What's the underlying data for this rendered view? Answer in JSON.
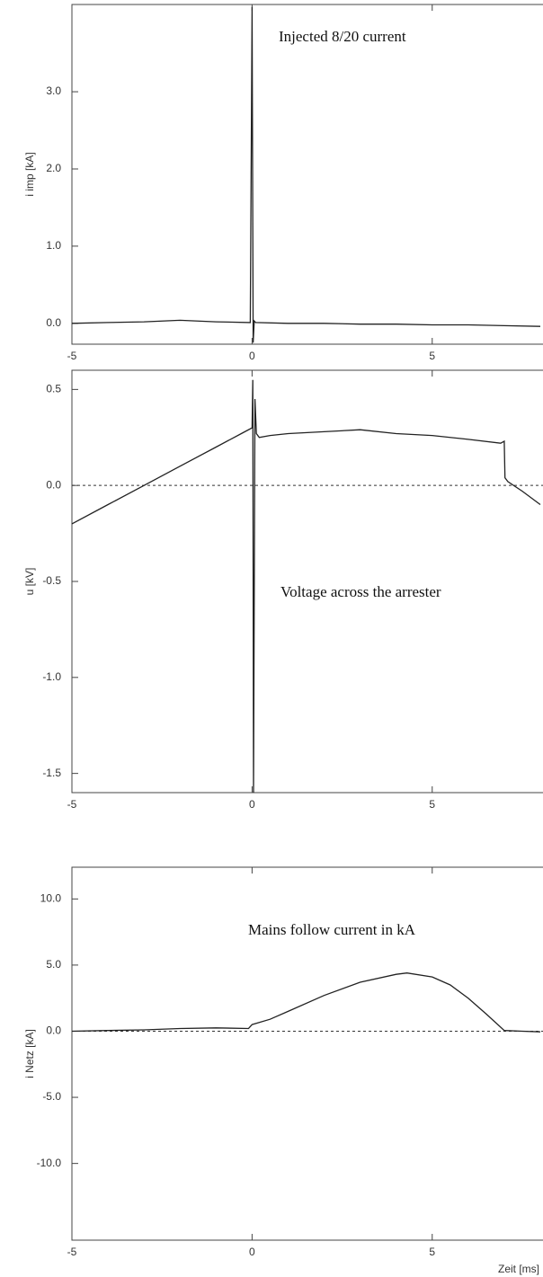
{
  "chart_data": [
    {
      "type": "line",
      "annotation": "Injected 8/20 current",
      "y_label": "i imp  [kA]",
      "x": [
        -5,
        -4,
        -3,
        -2,
        -1,
        -0.05,
        0,
        0.03,
        0.06,
        0.1,
        1,
        2,
        3,
        4,
        5,
        6,
        7,
        8
      ],
      "values": [
        0,
        0.01,
        0.02,
        0.04,
        0.02,
        0.01,
        4.1,
        -0.25,
        0.03,
        0.01,
        0,
        0,
        -0.01,
        -0.01,
        -0.02,
        -0.02,
        -0.03,
        -0.04
      ],
      "color": "#222",
      "xlim": [
        -5,
        8
      ],
      "ylim": [
        -0.27,
        4.13
      ],
      "xticks": [
        -5,
        0,
        5
      ],
      "yticks": [
        {
          "value": 0,
          "label": "0.0"
        },
        {
          "value": 1,
          "label": "1.0"
        },
        {
          "value": 2,
          "label": "2.0"
        },
        {
          "value": 3,
          "label": "3.0"
        }
      ],
      "zero_line": false
    },
    {
      "type": "line",
      "annotation": "Voltage across the arrester",
      "y_label": "u  [kV]",
      "x": [
        -5,
        -4,
        -3,
        -2,
        -1,
        -0.3,
        0,
        0.02,
        0.04,
        0.08,
        0.12,
        0.2,
        0.5,
        1,
        2,
        3,
        4,
        5,
        6,
        6.9,
        7,
        7.02,
        7.1,
        7.5,
        8
      ],
      "values": [
        -0.2,
        -0.1,
        0,
        0.1,
        0.2,
        0.27,
        0.3,
        0.55,
        -1.6,
        0.45,
        0.27,
        0.25,
        0.26,
        0.27,
        0.28,
        0.29,
        0.27,
        0.26,
        0.24,
        0.22,
        0.23,
        0.04,
        0.02,
        -0.03,
        -0.1
      ],
      "color": "#222",
      "xlim": [
        -5,
        8
      ],
      "ylim": [
        -1.6,
        0.6
      ],
      "xticks": [
        -5,
        0,
        5
      ],
      "yticks": [
        {
          "value": 0.5,
          "label": "0.5"
        },
        {
          "value": 0,
          "label": "0.0"
        },
        {
          "value": -0.5,
          "label": "-0.5"
        },
        {
          "value": -1,
          "label": "-1.0"
        },
        {
          "value": -1.5,
          "label": "-1.5"
        }
      ],
      "zero_line": true
    },
    {
      "type": "line",
      "annotation": "Mains follow current in kA",
      "y_label": "i Netz  [kA]",
      "x_label": "Zeit  [ms]",
      "x": [
        -5,
        -4,
        -3,
        -2,
        -1,
        -0.1,
        0,
        0.5,
        1,
        2,
        3,
        4,
        4.3,
        5,
        5.5,
        6,
        6.5,
        7,
        7.5,
        8
      ],
      "values": [
        0,
        0.05,
        0.1,
        0.2,
        0.25,
        0.2,
        0.5,
        0.9,
        1.5,
        2.7,
        3.7,
        4.3,
        4.4,
        4.1,
        3.5,
        2.5,
        1.3,
        0.05,
        0,
        -0.05
      ],
      "color": "#222",
      "xlim": [
        -5,
        8
      ],
      "ylim": [
        -15.8,
        12.4
      ],
      "xticks": [
        -5,
        0,
        5
      ],
      "yticks": [
        {
          "value": 10,
          "label": "10.0"
        },
        {
          "value": 5,
          "label": "5.0"
        },
        {
          "value": 0,
          "label": "0.0"
        },
        {
          "value": -5,
          "label": "-5.0"
        },
        {
          "value": -10,
          "label": "-10.0"
        }
      ],
      "zero_line": true
    }
  ]
}
